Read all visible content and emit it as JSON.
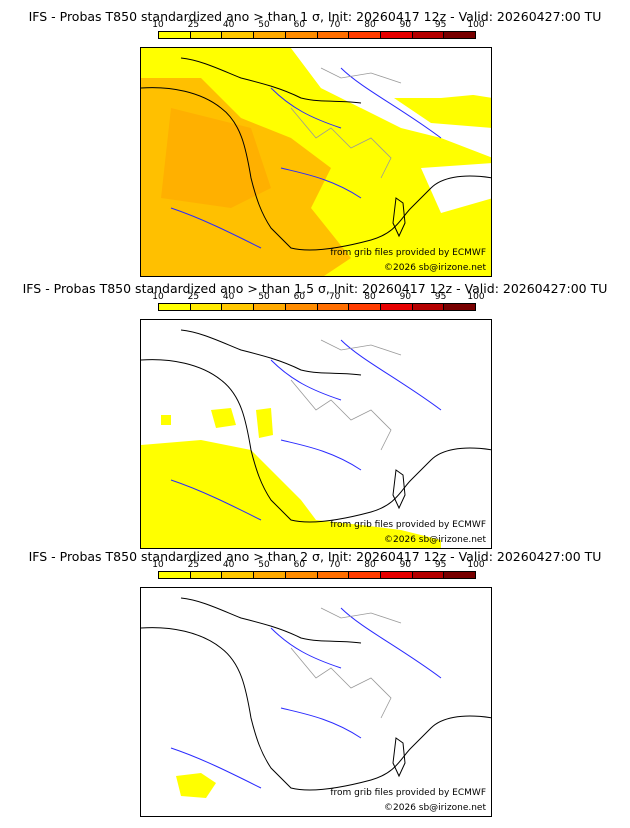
{
  "colorbar": {
    "ticks": [
      "10",
      "25",
      "40",
      "50",
      "60",
      "70",
      "80",
      "90",
      "95",
      "100"
    ],
    "colors": [
      "#ffff00",
      "#ffea00",
      "#ffc800",
      "#ffaa00",
      "#ff8c00",
      "#ff6e00",
      "#ff3c00",
      "#e60000",
      "#b40000",
      "#780000"
    ]
  },
  "colors": {
    "coast": "#000000",
    "rivers": "#2a2aff",
    "borders": "#999999",
    "prob_low": "#ffff00",
    "prob_mid": "#ffcc33",
    "prob_hi": "#ffb000"
  },
  "panels": [
    {
      "title": "IFS - Probas T850  standardized ano > than 1 σ, Init: 20260417 12z - Valid: 20260427:00 TU",
      "credit_line1": "from grib files provided by ECMWF",
      "credit_line2": "©2026 sb@irizone.net"
    },
    {
      "title": "IFS - Probas T850  standardized ano > than 1.5 σ, Init: 20260417 12z - Valid: 20260427:00 TU",
      "credit_line1": "from grib files provided by ECMWF",
      "credit_line2": "©2026 sb@irizone.net"
    },
    {
      "title": "IFS - Probas T850  standardized ano > than 2 σ, Init: 20260417 12z - Valid: 20260427:00 TU",
      "credit_line1": "from grib files provided by ECMWF",
      "credit_line2": "©2026 sb@irizone.net"
    }
  ]
}
